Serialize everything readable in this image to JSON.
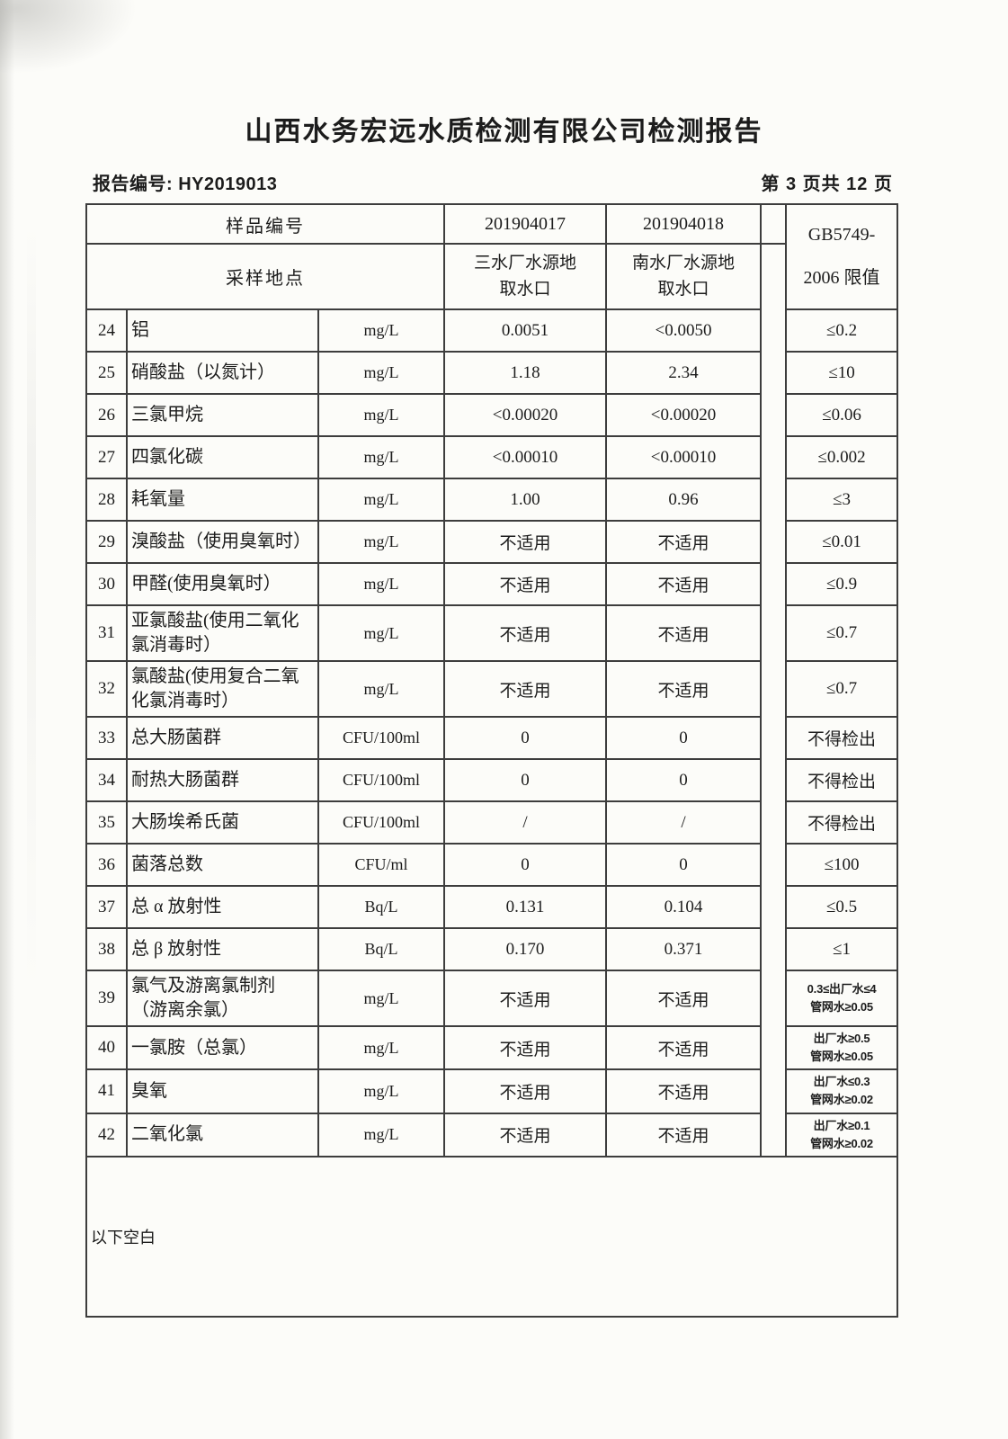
{
  "page": {
    "title": "山西水务宏远水质检测有限公司检测报告",
    "report_no_label": "报告编号:",
    "report_no_value": "HY2019013",
    "page_indicator": "第 3 页共 12 页"
  },
  "table": {
    "header": {
      "sample_id_label": "样品编号",
      "sample_id_1": "201904017",
      "sample_id_2": "201904018",
      "location_label": "采样地点",
      "location_1": "三水厂水源地\n取水口",
      "location_2": "南水厂水源地\n取水口",
      "limit_line1": "GB5749-",
      "limit_line2": "2006 限值"
    },
    "rows": [
      {
        "no": "24",
        "name": "铝",
        "unit": "mg/L",
        "v1": "0.0051",
        "v2": "<0.0050",
        "limit": "≤0.2"
      },
      {
        "no": "25",
        "name": "硝酸盐（以氮计）",
        "unit": "mg/L",
        "v1": "1.18",
        "v2": "2.34",
        "limit": "≤10"
      },
      {
        "no": "26",
        "name": "三氯甲烷",
        "unit": "mg/L",
        "v1": "<0.00020",
        "v2": "<0.00020",
        "limit": "≤0.06"
      },
      {
        "no": "27",
        "name": "四氯化碳",
        "unit": "mg/L",
        "v1": "<0.00010",
        "v2": "<0.00010",
        "limit": "≤0.002"
      },
      {
        "no": "28",
        "name": "耗氧量",
        "unit": "mg/L",
        "v1": "1.00",
        "v2": "0.96",
        "limit": "≤3"
      },
      {
        "no": "29",
        "name": "溴酸盐（使用臭氧时）",
        "unit": "mg/L",
        "v1": "不适用",
        "v2": "不适用",
        "limit": "≤0.01"
      },
      {
        "no": "30",
        "name": "甲醛(使用臭氧时）",
        "unit": "mg/L",
        "v1": "不适用",
        "v2": "不适用",
        "limit": "≤0.9"
      },
      {
        "no": "31",
        "name": "亚氯酸盐(使用二氧化氯消毒时）",
        "unit": "mg/L",
        "v1": "不适用",
        "v2": "不适用",
        "limit": "≤0.7"
      },
      {
        "no": "32",
        "name": "氯酸盐(使用复合二氧化氯消毒时）",
        "unit": "mg/L",
        "v1": "不适用",
        "v2": "不适用",
        "limit": "≤0.7"
      },
      {
        "no": "33",
        "name": "总大肠菌群",
        "unit": "CFU/100ml",
        "v1": "0",
        "v2": "0",
        "limit": "不得检出"
      },
      {
        "no": "34",
        "name": "耐热大肠菌群",
        "unit": "CFU/100ml",
        "v1": "0",
        "v2": "0",
        "limit": "不得检出"
      },
      {
        "no": "35",
        "name": "大肠埃希氏菌",
        "unit": "CFU/100ml",
        "v1": "/",
        "v2": "/",
        "limit": "不得检出"
      },
      {
        "no": "36",
        "name": "菌落总数",
        "unit": "CFU/ml",
        "v1": "0",
        "v2": "0",
        "limit": "≤100"
      },
      {
        "no": "37",
        "name": "总 α 放射性",
        "unit": "Bq/L",
        "v1": "0.131",
        "v2": "0.104",
        "limit": "≤0.5"
      },
      {
        "no": "38",
        "name": "总 β 放射性",
        "unit": "Bq/L",
        "v1": "0.170",
        "v2": "0.371",
        "limit": "≤1"
      },
      {
        "no": "39",
        "name": "氯气及游离氯制剂\n（游离余氯）",
        "unit": "mg/L",
        "v1": "不适用",
        "v2": "不适用",
        "limit": "0.3≤出厂水≤4\n管网水≥0.05"
      },
      {
        "no": "40",
        "name": "一氯胺（总氯）",
        "unit": "mg/L",
        "v1": "不适用",
        "v2": "不适用",
        "limit": "出厂水≥0.5\n管网水≥0.05"
      },
      {
        "no": "41",
        "name": "臭氧",
        "unit": "mg/L",
        "v1": "不适用",
        "v2": "不适用",
        "limit": "出厂水≤0.3\n管网水≥0.02"
      },
      {
        "no": "42",
        "name": "二氧化氯",
        "unit": "mg/L",
        "v1": "不适用",
        "v2": "不适用",
        "limit": "出厂水≥0.1\n管网水≥0.02"
      }
    ],
    "footer_note": "以下空白"
  }
}
